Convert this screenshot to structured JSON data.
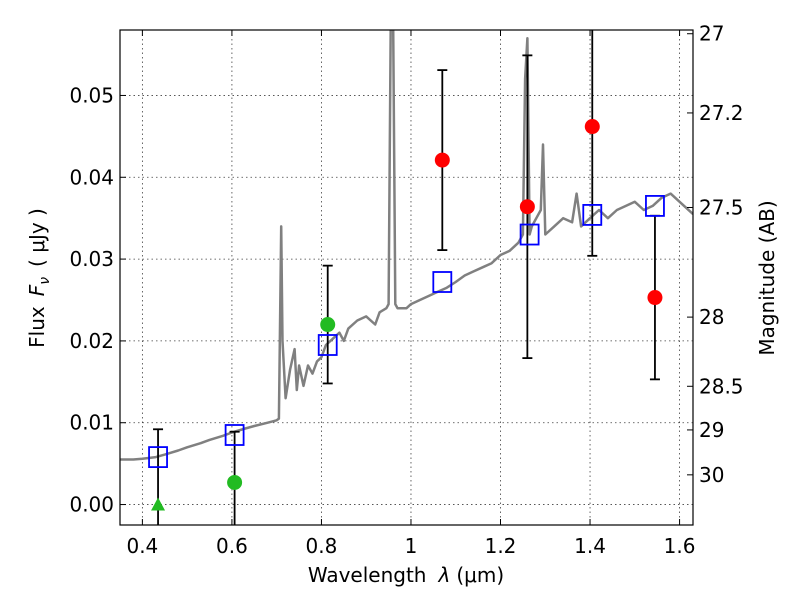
{
  "chart_data": {
    "type": "scatter",
    "xlabel_prefix": "Wavelength",
    "xlabel_symbol": "λ",
    "xlabel_unit": "(μm)",
    "ylabel_prefix": "Flux",
    "ylabel_symbol": "F",
    "ylabel_subscript": "ν",
    "ylabel_unit": "( μJy )",
    "y2label": "Magnitude (AB)",
    "xlim": [
      0.35,
      1.63
    ],
    "ylim": [
      -0.0025,
      0.058
    ],
    "x_ticks": [
      {
        "value": 0.4,
        "label": "0.4"
      },
      {
        "value": 0.6,
        "label": "0.6"
      },
      {
        "value": 0.8,
        "label": "0.8"
      },
      {
        "value": 1.0,
        "label": "1"
      },
      {
        "value": 1.2,
        "label": "1.2"
      },
      {
        "value": 1.4,
        "label": "1.4"
      },
      {
        "value": 1.6,
        "label": "1.6"
      }
    ],
    "y_ticks": [
      {
        "value": 0.0,
        "label": "0.00"
      },
      {
        "value": 0.01,
        "label": "0.01"
      },
      {
        "value": 0.02,
        "label": "0.02"
      },
      {
        "value": 0.03,
        "label": "0.03"
      },
      {
        "value": 0.04,
        "label": "0.04"
      },
      {
        "value": 0.05,
        "label": "0.05"
      }
    ],
    "mag_ticks": [
      {
        "value": 27,
        "label": "27"
      },
      {
        "value": 27.2,
        "label": "27.2"
      },
      {
        "value": 27.5,
        "label": "27.5"
      },
      {
        "value": 28,
        "label": "28"
      },
      {
        "value": 28.5,
        "label": "28.5"
      },
      {
        "value": 29,
        "label": "29"
      },
      {
        "value": 30,
        "label": "30"
      }
    ],
    "grid": true,
    "colors": {
      "spectrum": "#808080",
      "detection": "#ff0000",
      "low_sn": "#22bb22",
      "model": "#0000ff",
      "errorbar": "#000000"
    },
    "model_spectrum": [
      [
        0.35,
        0.0055
      ],
      [
        0.38,
        0.0055
      ],
      [
        0.4,
        0.0056
      ],
      [
        0.43,
        0.0058
      ],
      [
        0.45,
        0.0061
      ],
      [
        0.48,
        0.0066
      ],
      [
        0.5,
        0.007
      ],
      [
        0.53,
        0.0075
      ],
      [
        0.55,
        0.0079
      ],
      [
        0.58,
        0.0084
      ],
      [
        0.6,
        0.0088
      ],
      [
        0.63,
        0.0093
      ],
      [
        0.65,
        0.0096
      ],
      [
        0.68,
        0.01
      ],
      [
        0.7,
        0.0103
      ],
      [
        0.705,
        0.0105
      ],
      [
        0.71,
        0.034
      ],
      [
        0.713,
        0.02
      ],
      [
        0.72,
        0.013
      ],
      [
        0.73,
        0.0165
      ],
      [
        0.74,
        0.019
      ],
      [
        0.745,
        0.014
      ],
      [
        0.75,
        0.017
      ],
      [
        0.76,
        0.0145
      ],
      [
        0.77,
        0.017
      ],
      [
        0.78,
        0.016
      ],
      [
        0.79,
        0.0175
      ],
      [
        0.8,
        0.018
      ],
      [
        0.81,
        0.0195
      ],
      [
        0.82,
        0.02
      ],
      [
        0.84,
        0.021
      ],
      [
        0.85,
        0.02
      ],
      [
        0.86,
        0.0215
      ],
      [
        0.88,
        0.0225
      ],
      [
        0.9,
        0.023
      ],
      [
        0.92,
        0.022
      ],
      [
        0.93,
        0.0235
      ],
      [
        0.945,
        0.024
      ],
      [
        0.95,
        0.0245
      ],
      [
        0.955,
        0.06
      ],
      [
        0.96,
        0.06
      ],
      [
        0.965,
        0.0245
      ],
      [
        0.97,
        0.024
      ],
      [
        0.99,
        0.024
      ],
      [
        1.0,
        0.0245
      ],
      [
        1.02,
        0.025
      ],
      [
        1.04,
        0.0255
      ],
      [
        1.06,
        0.026
      ],
      [
        1.08,
        0.0265
      ],
      [
        1.1,
        0.0272
      ],
      [
        1.12,
        0.028
      ],
      [
        1.14,
        0.0285
      ],
      [
        1.16,
        0.029
      ],
      [
        1.18,
        0.0295
      ],
      [
        1.2,
        0.0305
      ],
      [
        1.22,
        0.031
      ],
      [
        1.24,
        0.032
      ],
      [
        1.25,
        0.033
      ],
      [
        1.255,
        0.052
      ],
      [
        1.26,
        0.057
      ],
      [
        1.265,
        0.033
      ],
      [
        1.27,
        0.034
      ],
      [
        1.28,
        0.035
      ],
      [
        1.29,
        0.036
      ],
      [
        1.295,
        0.044
      ],
      [
        1.3,
        0.033
      ],
      [
        1.32,
        0.034
      ],
      [
        1.34,
        0.035
      ],
      [
        1.36,
        0.0345
      ],
      [
        1.37,
        0.038
      ],
      [
        1.38,
        0.034
      ],
      [
        1.4,
        0.035
      ],
      [
        1.42,
        0.036
      ],
      [
        1.44,
        0.035
      ],
      [
        1.46,
        0.036
      ],
      [
        1.48,
        0.0365
      ],
      [
        1.5,
        0.037
      ],
      [
        1.52,
        0.036
      ],
      [
        1.54,
        0.0365
      ],
      [
        1.56,
        0.0375
      ],
      [
        1.58,
        0.038
      ],
      [
        1.6,
        0.037
      ],
      [
        1.63,
        0.0355
      ]
    ],
    "model_photometry": [
      {
        "x": 0.435,
        "y": 0.0058
      },
      {
        "x": 0.606,
        "y": 0.0085
      },
      {
        "x": 0.814,
        "y": 0.0195
      },
      {
        "x": 1.07,
        "y": 0.0272
      },
      {
        "x": 1.265,
        "y": 0.033
      },
      {
        "x": 1.405,
        "y": 0.0354
      },
      {
        "x": 1.545,
        "y": 0.0365
      }
    ],
    "observations": [
      {
        "x": 0.435,
        "y": 0.0,
        "err": 0.0092,
        "marker": "triangle",
        "color": "low_sn"
      },
      {
        "x": 0.606,
        "y": 0.0027,
        "err": 0.0062,
        "marker": "circle",
        "color": "low_sn"
      },
      {
        "x": 0.814,
        "y": 0.022,
        "err": 0.0072,
        "marker": "circle",
        "color": "low_sn"
      },
      {
        "x": 1.07,
        "y": 0.0421,
        "err": 0.011,
        "marker": "circle",
        "color": "detection"
      },
      {
        "x": 1.26,
        "y": 0.0364,
        "err": 0.0185,
        "marker": "circle",
        "color": "detection"
      },
      {
        "x": 1.405,
        "y": 0.0462,
        "err": 0.0158,
        "marker": "circle",
        "color": "detection"
      },
      {
        "x": 1.545,
        "y": 0.0253,
        "err": 0.01,
        "marker": "circle",
        "color": "detection"
      }
    ]
  }
}
